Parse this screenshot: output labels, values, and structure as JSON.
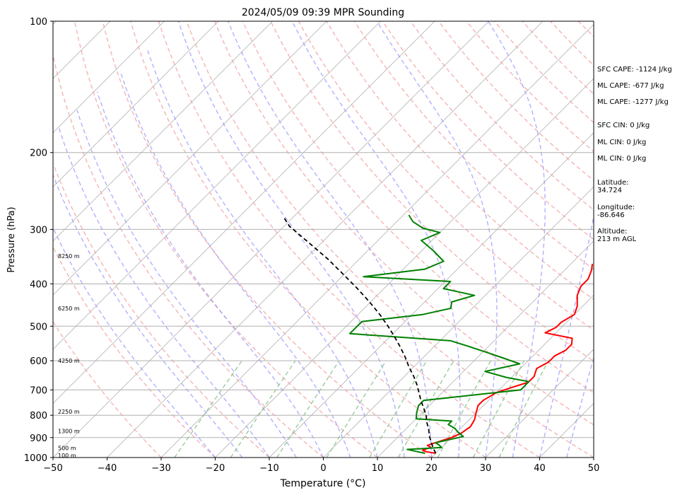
{
  "chart_data": {
    "type": "line",
    "title": "2024/05/09 09:39 MPR Sounding",
    "xlabel": "Temperature (°C)",
    "ylabel": "Pressure (hPa)",
    "xlim": [
      -50,
      50
    ],
    "ylim": [
      1000,
      100
    ],
    "y_scale": "log",
    "x_ticks": [
      -50,
      -40,
      -30,
      -20,
      -10,
      0,
      10,
      20,
      30,
      40,
      50
    ],
    "x_tick_labels": [
      "−50",
      "−40",
      "−30",
      "−20",
      "−10",
      "0",
      "10",
      "20",
      "30",
      "40",
      "50"
    ],
    "y_ticks": [
      1000,
      900,
      800,
      700,
      600,
      500,
      400,
      300,
      200,
      100
    ],
    "y_tick_labels": [
      "1000",
      "900",
      "800",
      "700",
      "600",
      "500",
      "400",
      "300",
      "200",
      "100"
    ],
    "grid": "horizontal isobars at y ticks",
    "skew": "skew-T log-P",
    "series": [
      {
        "name": "",
        "role": "temperature",
        "color": "#ff0000",
        "points": [
          [
            20,
            978
          ],
          [
            18,
            970
          ],
          [
            17,
            962
          ],
          [
            18,
            948
          ],
          [
            17,
            938
          ],
          [
            18,
            925
          ],
          [
            19,
            912
          ],
          [
            20,
            900
          ],
          [
            21,
            880
          ],
          [
            21.5,
            850
          ],
          [
            21,
            820
          ],
          [
            20,
            790
          ],
          [
            19,
            760
          ],
          [
            19,
            740
          ],
          [
            20,
            710
          ],
          [
            22,
            690
          ],
          [
            24,
            672
          ],
          [
            24,
            652
          ],
          [
            23,
            625
          ],
          [
            24,
            605
          ],
          [
            24,
            585
          ],
          [
            25,
            568
          ],
          [
            25,
            550
          ],
          [
            24,
            533
          ],
          [
            18,
            518
          ],
          [
            19,
            503
          ],
          [
            19,
            490
          ],
          [
            20,
            470
          ],
          [
            19,
            450
          ],
          [
            17,
            425
          ],
          [
            16,
            405
          ],
          [
            16,
            390
          ],
          [
            15,
            372
          ],
          [
            14,
            360
          ]
        ]
      },
      {
        "name": "",
        "role": "dewpoint",
        "color": "#008000",
        "points": [
          [
            18,
            978
          ],
          [
            16,
            968
          ],
          [
            14,
            958
          ],
          [
            16,
            955
          ],
          [
            18,
            952
          ],
          [
            20,
            948
          ],
          [
            19,
            935
          ],
          [
            18,
            925
          ],
          [
            20,
            910
          ],
          [
            22,
            895
          ],
          [
            20,
            872
          ],
          [
            19,
            858
          ],
          [
            17,
            840
          ],
          [
            17,
            825
          ],
          [
            10,
            815
          ],
          [
            9,
            790
          ],
          [
            8,
            760
          ],
          [
            8,
            740
          ],
          [
            24,
            700
          ],
          [
            24,
            670
          ],
          [
            19,
            655
          ],
          [
            14,
            635
          ],
          [
            19,
            610
          ],
          [
            15,
            592
          ],
          [
            11,
            575
          ],
          [
            6,
            555
          ],
          [
            2,
            540
          ],
          [
            -18,
            520
          ],
          [
            -18,
            500
          ],
          [
            -18,
            488
          ],
          [
            -8,
            470
          ],
          [
            -4,
            455
          ],
          [
            -5,
            440
          ],
          [
            -2,
            425
          ],
          [
            -9,
            410
          ],
          [
            -9,
            395
          ],
          [
            -26,
            385
          ],
          [
            -16,
            370
          ],
          [
            -14,
            355
          ],
          [
            -18,
            335
          ],
          [
            -22,
            318
          ],
          [
            -20,
            305
          ],
          [
            -24,
            298
          ],
          [
            -27,
            288
          ],
          [
            -29,
            278
          ]
        ]
      },
      {
        "name": "",
        "role": "parcel",
        "color": "#000000",
        "dash": "dashed",
        "points": [
          [
            20,
            978
          ],
          [
            18.5,
            950
          ],
          [
            17,
            920
          ],
          [
            15.5,
            890
          ],
          [
            14.2,
            860
          ],
          [
            12.6,
            830
          ],
          [
            11.2,
            800
          ],
          [
            9.4,
            770
          ],
          [
            7.5,
            740
          ],
          [
            5.7,
            710
          ],
          [
            3.8,
            680
          ],
          [
            1.6,
            650
          ],
          [
            -0.9,
            620
          ],
          [
            -3.3,
            590
          ],
          [
            -6,
            560
          ],
          [
            -9,
            530
          ],
          [
            -12.3,
            500
          ],
          [
            -16,
            470
          ],
          [
            -20.2,
            440
          ],
          [
            -24.9,
            410
          ],
          [
            -30.2,
            380
          ],
          [
            -36,
            350
          ],
          [
            -42.8,
            320
          ],
          [
            -49,
            295
          ],
          [
            -52,
            280
          ]
        ]
      }
    ],
    "annotations": {
      "height_labels": [
        {
          "text": "100 m",
          "p": 988
        },
        {
          "text": "500 m",
          "p": 950
        },
        {
          "text": "1300 m",
          "p": 870
        },
        {
          "text": "2250 m",
          "p": 785
        },
        {
          "text": "4250 m",
          "p": 600
        },
        {
          "text": "6250 m",
          "p": 455
        },
        {
          "text": "8250 m",
          "p": 345
        }
      ],
      "side_text": [
        "SFC CAPE: -1124 J/kg",
        "ML CAPE: -677 J/kg",
        "ML CAPE: -1277 J/kg",
        "SFC CIN: 0 J/kg",
        "ML CIN: 0 J/kg",
        "ML CIN: 0 J/kg",
        "Latitude:\n34.724",
        "Longitude:\n-86.646",
        "Altitude:\n213 m AGL"
      ]
    },
    "background_lines": {
      "isotherm_color": "#b0b0b0",
      "dry_adiabat_color": "#f4a0a0",
      "moist_adiabat_color": "#9090ff",
      "mixing_ratio_color": "#80c080"
    }
  }
}
